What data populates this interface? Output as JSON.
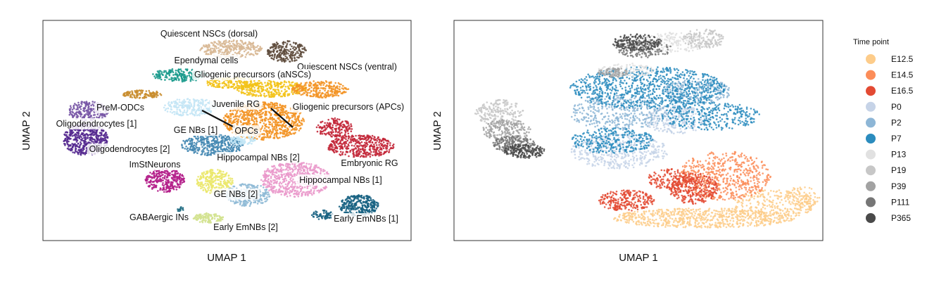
{
  "chart_data": [
    {
      "type": "scatter",
      "title": "",
      "xlabel": "UMAP 1",
      "ylabel": "UMAP 2",
      "grid": false,
      "legend": "none",
      "clusters": [
        {
          "name": "Quiescent NSCs (dorsal)",
          "color": "#d8b895"
        },
        {
          "name": "Quiescent NSCs (ventral)",
          "color": "#5e4b3c"
        },
        {
          "name": "Ependymal cells",
          "color": "#17998b"
        },
        {
          "name": "Gliogenic precursors (aNSCs)",
          "color": "#f3c319"
        },
        {
          "name": "Juvenile RG",
          "color": "#c4e5f5"
        },
        {
          "name": "Gliogenic precursors (APCs)",
          "color": "#f39425"
        },
        {
          "name": "PreM-ODCs",
          "color": "#c98d2e"
        },
        {
          "name": "Oligodendrocytes [1]",
          "color": "#7857a6"
        },
        {
          "name": "Oligodendrocytes [2]",
          "color": "#54288f"
        },
        {
          "name": "GE NBs [1]",
          "color": "#4588b3"
        },
        {
          "name": "OPCs",
          "color": "#c2e6f5"
        },
        {
          "name": "ImStNeurons",
          "color": "#b41f8a"
        },
        {
          "name": "Hippocampal NBs [2]",
          "color": "#ebe86c"
        },
        {
          "name": "Embryonic RG",
          "color": "#c3283a"
        },
        {
          "name": "Hippocampal NBs [1]",
          "color": "#ea99cb"
        },
        {
          "name": "GE NBs [2]",
          "color": "#8fbad6"
        },
        {
          "name": "GABAergic INs",
          "color": "#206b82"
        },
        {
          "name": "Early EmNBs [2]",
          "color": "#d3e28f"
        },
        {
          "name": "Early EmNBs [1]",
          "color": "#176282"
        }
      ]
    },
    {
      "type": "scatter",
      "title": "",
      "xlabel": "UMAP 1",
      "ylabel": "UMAP 2",
      "grid": false,
      "legend": "right",
      "legend_title": "Time point",
      "series": [
        {
          "name": "E12.5",
          "color": "#fdcc8a"
        },
        {
          "name": "E14.5",
          "color": "#fc8d59"
        },
        {
          "name": "E16.5",
          "color": "#e34a33"
        },
        {
          "name": "P0",
          "color": "#c6d3e7"
        },
        {
          "name": "P2",
          "color": "#8db6d6"
        },
        {
          "name": "P7",
          "color": "#2b8cbe"
        },
        {
          "name": "P13",
          "color": "#e1e1e1"
        },
        {
          "name": "P19",
          "color": "#c7c7c7"
        },
        {
          "name": "P39",
          "color": "#a2a2a2"
        },
        {
          "name": "P111",
          "color": "#767676"
        },
        {
          "name": "P365",
          "color": "#4a4a4a"
        }
      ]
    }
  ]
}
